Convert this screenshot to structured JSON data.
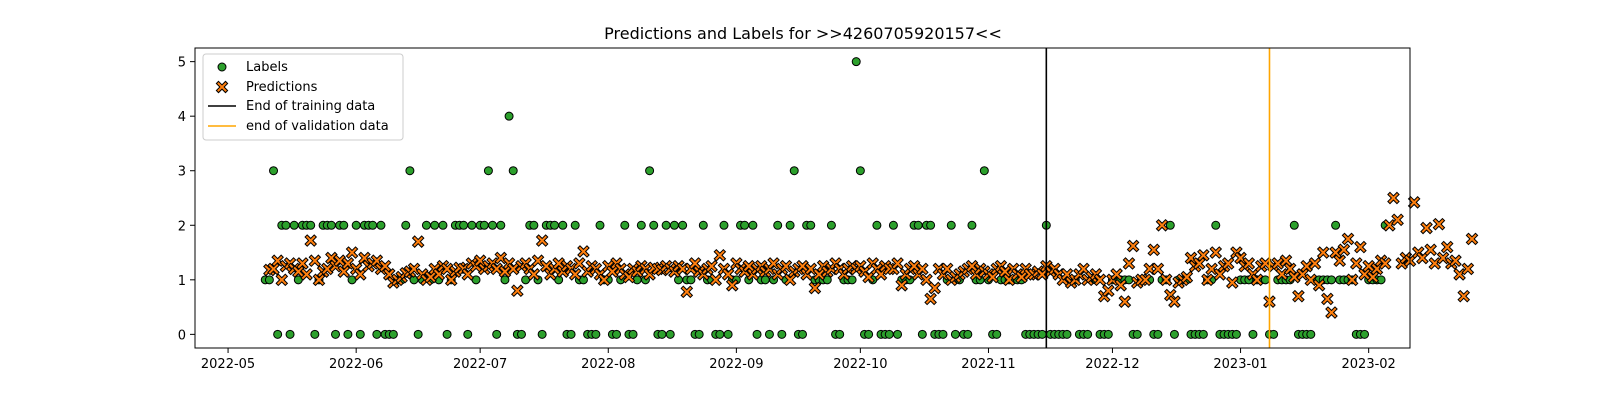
{
  "chart_data": {
    "type": "scatter",
    "title": "Predictions and Labels for >>4260705920157<<",
    "xlabel": "",
    "ylabel": "",
    "x_range": [
      "2022-04-23",
      "2023-02-11"
    ],
    "ylim": [
      -0.25,
      5.25
    ],
    "x_ticks": [
      "2022-05",
      "2022-06",
      "2022-07",
      "2022-08",
      "2022-09",
      "2022-10",
      "2022-11",
      "2022-12",
      "2023-01",
      "2023-02"
    ],
    "x_tick_dates": [
      "2022-05-01",
      "2022-06-01",
      "2022-07-01",
      "2022-08-01",
      "2022-09-01",
      "2022-10-01",
      "2022-11-01",
      "2022-12-01",
      "2023-01-01",
      "2023-02-01"
    ],
    "y_ticks": [
      0,
      1,
      2,
      3,
      4,
      5
    ],
    "grid": false,
    "legend": {
      "placement": "top-left",
      "entries": [
        "Labels",
        "Predictions",
        "End of training data",
        "end of validation data"
      ]
    },
    "vlines": [
      {
        "name": "End of training data",
        "date": "2022-11-15",
        "color": "#000000"
      },
      {
        "name": "end of validation data",
        "date": "2023-01-08",
        "color": "#ffa500"
      }
    ],
    "series": [
      {
        "name": "Labels",
        "marker": "circle",
        "color": "#2ca02c",
        "start_date": "2022-05-10",
        "values": [
          1,
          1,
          3,
          0,
          2,
          2,
          0,
          2,
          1,
          2,
          2,
          2,
          0,
          1,
          2,
          2,
          2,
          0,
          2,
          2,
          0,
          1,
          2,
          0,
          2,
          2,
          2,
          0,
          2,
          0,
          0,
          0,
          1,
          1,
          2,
          3,
          1,
          0,
          1,
          2,
          1,
          2,
          1,
          2,
          0,
          1,
          2,
          2,
          2,
          0,
          2,
          1,
          2,
          2,
          3,
          2,
          0,
          2,
          1,
          4,
          3,
          0,
          0,
          1,
          2,
          2,
          1,
          0,
          2,
          2,
          2,
          1,
          2,
          0,
          0,
          2,
          1,
          1,
          0,
          0,
          0,
          2,
          1,
          1,
          0,
          0,
          1,
          2,
          0,
          0,
          1,
          2,
          1,
          3,
          2,
          0,
          0,
          2,
          0,
          2,
          1,
          2,
          1,
          1,
          0,
          0,
          2,
          1,
          1,
          0,
          0,
          2,
          0,
          1,
          1,
          2,
          2,
          1,
          2,
          0,
          1,
          1,
          0,
          1,
          2,
          0,
          1,
          2,
          3,
          0,
          0,
          2,
          2,
          1,
          1,
          1,
          1,
          2,
          0,
          0,
          1,
          1,
          1,
          5,
          3,
          0,
          0,
          1,
          2,
          0,
          0,
          0,
          2,
          0,
          1,
          1,
          1,
          2,
          2,
          0,
          2,
          2,
          0,
          0,
          0,
          1,
          2,
          0,
          1,
          0,
          0,
          2,
          1,
          1,
          3,
          1,
          0,
          0,
          1,
          1,
          1,
          1,
          1,
          1,
          0,
          0,
          0,
          0,
          0,
          2,
          0,
          0,
          0,
          0,
          0,
          1,
          1,
          0,
          0,
          0,
          1,
          1,
          0,
          0,
          0,
          1,
          1,
          1,
          1,
          1,
          0,
          0,
          1,
          1,
          1,
          0,
          0,
          1,
          1,
          2,
          0,
          1,
          1,
          1,
          0,
          0,
          0,
          0,
          1,
          1,
          2,
          0,
          0,
          0,
          0,
          0,
          1,
          1,
          1,
          0,
          1,
          1,
          1,
          0,
          0,
          1,
          1,
          1,
          1,
          2,
          0,
          0,
          0,
          0,
          1,
          1,
          1,
          1,
          1,
          2,
          1,
          1,
          1,
          1,
          0,
          0,
          0,
          1,
          1,
          1,
          1,
          2
        ]
      },
      {
        "name": "Predictions",
        "marker": "x",
        "color": "#ff7f0e",
        "start_date": "2022-05-11",
        "values": [
          1.18,
          1.2,
          1.35,
          1.0,
          1.25,
          1.3,
          1.2,
          1.15,
          1.3,
          1.1,
          1.72,
          1.35,
          1.0,
          1.15,
          1.2,
          1.4,
          1.25,
          1.35,
          1.15,
          1.3,
          1.5,
          1.2,
          1.1,
          1.4,
          1.25,
          1.3,
          1.35,
          1.2,
          1.25,
          1.1,
          0.95,
          1.0,
          1.05,
          1.12,
          1.15,
          1.2,
          1.7,
          1.1,
          1.0,
          1.05,
          1.2,
          1.1,
          1.25,
          1.2,
          1.0,
          1.15,
          1.22,
          1.2,
          1.1,
          1.3,
          1.25,
          1.35,
          1.2,
          1.25,
          1.3,
          1.2,
          1.4,
          1.15,
          1.3,
          1.2,
          0.8,
          1.25,
          1.3,
          1.2,
          1.1,
          1.35,
          1.72,
          1.25,
          1.1,
          1.2,
          1.3,
          1.15,
          1.25,
          1.2,
          1.1,
          1.3,
          1.52,
          1.15,
          1.25,
          1.2,
          1.1,
          1.0,
          1.25,
          1.15,
          1.3,
          1.2,
          1.1,
          1.05,
          1.2,
          1.15,
          1.25,
          1.2,
          1.1,
          1.22,
          1.2,
          1.18,
          1.25,
          1.2,
          1.15,
          1.25,
          1.2,
          0.78,
          1.2,
          1.3,
          1.15,
          1.1,
          1.2,
          1.25,
          1.0,
          1.45,
          1.2,
          1.1,
          0.9,
          1.3,
          1.2,
          1.15,
          1.25,
          1.1,
          1.2,
          1.25,
          1.15,
          1.2,
          1.3,
          1.1,
          1.2,
          1.25,
          1.0,
          1.15,
          1.2,
          1.25,
          1.1,
          1.2,
          0.85,
          1.1,
          1.25,
          1.15,
          1.2,
          1.3,
          1.2,
          1.1,
          1.2,
          1.25,
          1.2,
          1.25,
          1.15,
          1.05,
          1.3,
          1.2,
          1.1,
          1.25,
          1.2,
          1.2,
          1.3,
          0.9,
          1.1,
          1.2,
          1.25,
          1.1,
          1.2,
          1.0,
          0.65,
          0.85,
          1.2,
          1.1,
          1.2,
          1.0,
          1.05,
          1.1,
          1.15,
          1.2,
          1.25,
          1.1,
          1.2,
          1.15,
          1.1,
          1.05,
          1.2,
          1.25,
          1.15,
          1.0,
          1.2,
          1.1,
          1.05,
          1.2,
          1.1,
          1.1,
          1.15,
          1.1,
          1.25,
          1.15,
          1.2,
          1.1,
          1.0,
          1.1,
          0.95,
          1.0,
          1.1,
          1.2,
          1.0,
          1.05,
          1.1,
          1.0,
          0.7,
          0.8,
          1.0,
          1.1,
          0.9,
          0.6,
          1.3,
          1.62,
          0.95,
          1.0,
          1.0,
          1.2,
          1.55,
          1.2,
          2.0,
          1.0,
          0.72,
          0.6,
          0.95,
          1.0,
          1.05,
          1.4,
          1.25,
          1.3,
          1.45,
          1.0,
          1.2,
          1.5,
          1.1,
          1.25,
          1.3,
          0.95,
          1.5,
          1.4,
          1.25,
          1.3,
          1.1,
          1.0,
          1.25,
          1.3,
          0.6,
          1.25,
          1.3,
          1.1,
          1.35,
          1.2,
          1.05,
          0.7,
          1.1,
          1.25,
          1.0,
          1.3,
          0.9,
          1.5,
          0.65,
          0.4,
          1.5,
          1.35,
          1.55,
          1.75,
          1.0,
          1.3,
          1.6,
          1.1,
          1.25,
          1.05,
          1.2,
          1.35,
          1.3,
          2.0,
          2.5,
          2.1,
          1.3,
          1.4,
          1.35,
          2.42,
          1.5,
          1.4,
          1.95,
          1.55,
          1.3,
          2.02,
          1.4,
          1.6,
          1.3,
          1.35,
          1.1,
          0.7,
          1.2,
          1.75
        ]
      }
    ]
  }
}
